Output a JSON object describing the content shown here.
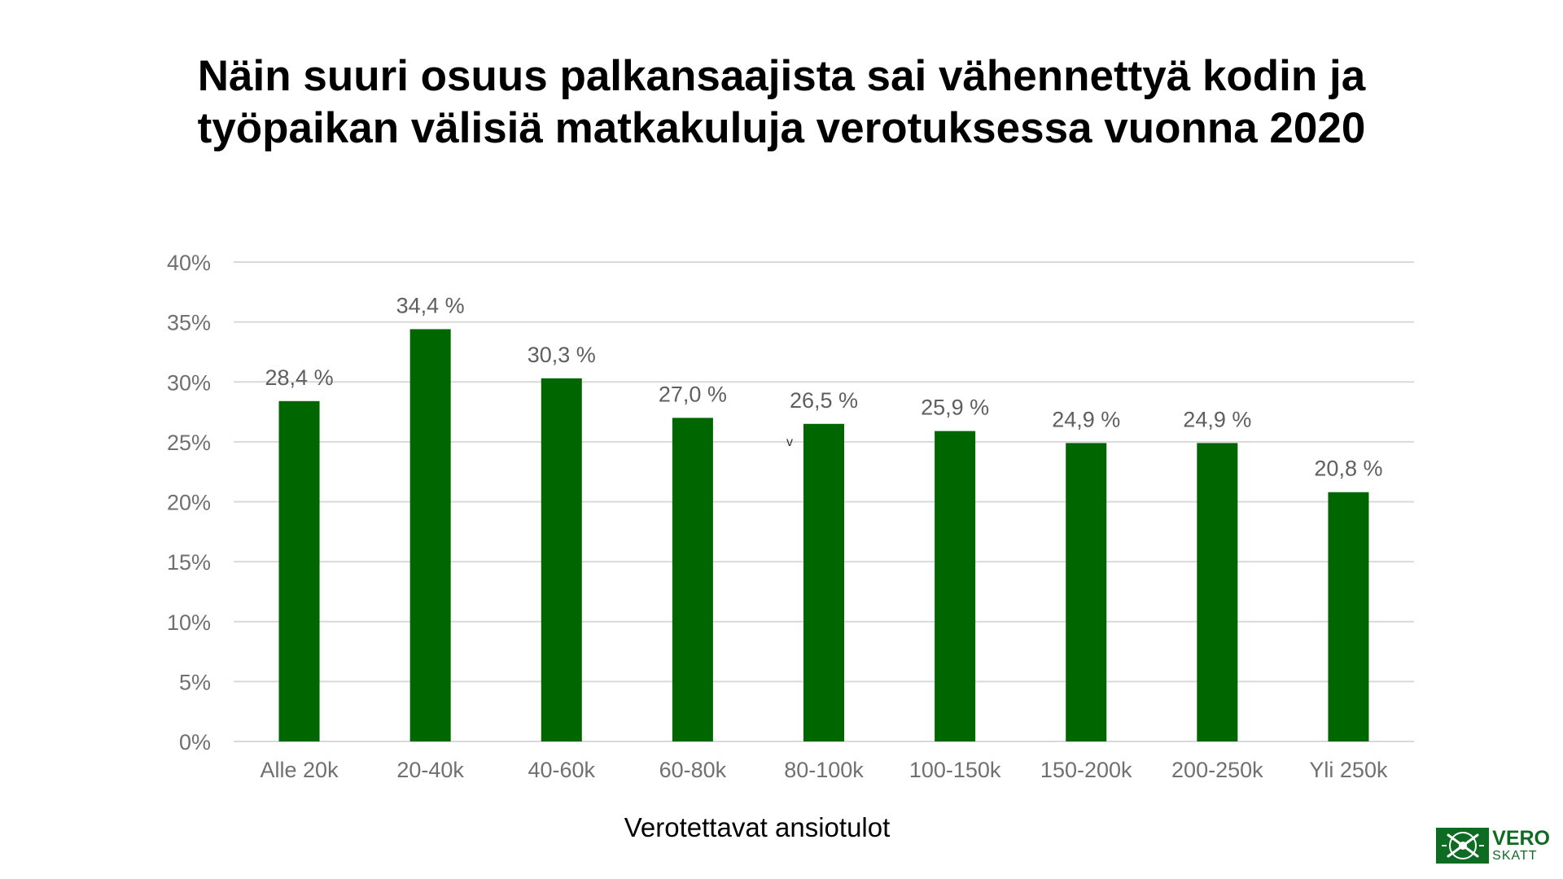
{
  "chart_data": {
    "type": "bar",
    "title": "Näin suuri osuus palkansaajista sai vähennettyä kodin ja työpaikan välisiä matkakuluja verotuksessa vuonna 2020",
    "title_lines": [
      "Näin suuri osuus palkansaajista sai vähennettyä kodin ja",
      "työpaikan välisiä matkakuluja verotuksessa vuonna 2020"
    ],
    "xlabel": "Verotettavat ansiotulot",
    "ylabel": "",
    "categories": [
      "Alle 20k",
      "20-40k",
      "40-60k",
      "60-80k",
      "80-100k",
      "100-150k",
      "150-200k",
      "200-250k",
      "Yli 250k"
    ],
    "values": [
      28.4,
      34.4,
      30.3,
      27.0,
      26.5,
      25.9,
      24.9,
      24.9,
      20.8
    ],
    "data_labels": [
      "28,4 %",
      "34,4 %",
      "30,3 %",
      "27,0 %",
      "26,5 %",
      "25,9 %",
      "24,9 %",
      "24,9 %",
      "20,8 %"
    ],
    "ylim": [
      0,
      40
    ],
    "y_ticks": [
      0,
      5,
      10,
      15,
      20,
      25,
      30,
      35,
      40
    ],
    "y_tick_labels": [
      "0%",
      "5%",
      "10%",
      "15%",
      "20%",
      "25%",
      "30%",
      "35%",
      "40%"
    ],
    "grid": true,
    "legend": "none",
    "annotations": [
      "v"
    ]
  },
  "colors": {
    "bar": "#006600",
    "grid": "#d9d9d9",
    "tick_text": "#707070",
    "logo_green": "#0e6b22"
  },
  "logo": {
    "icon": "tax-administration-emblem-icon",
    "line1": "VERO",
    "line2": "SKATT"
  }
}
